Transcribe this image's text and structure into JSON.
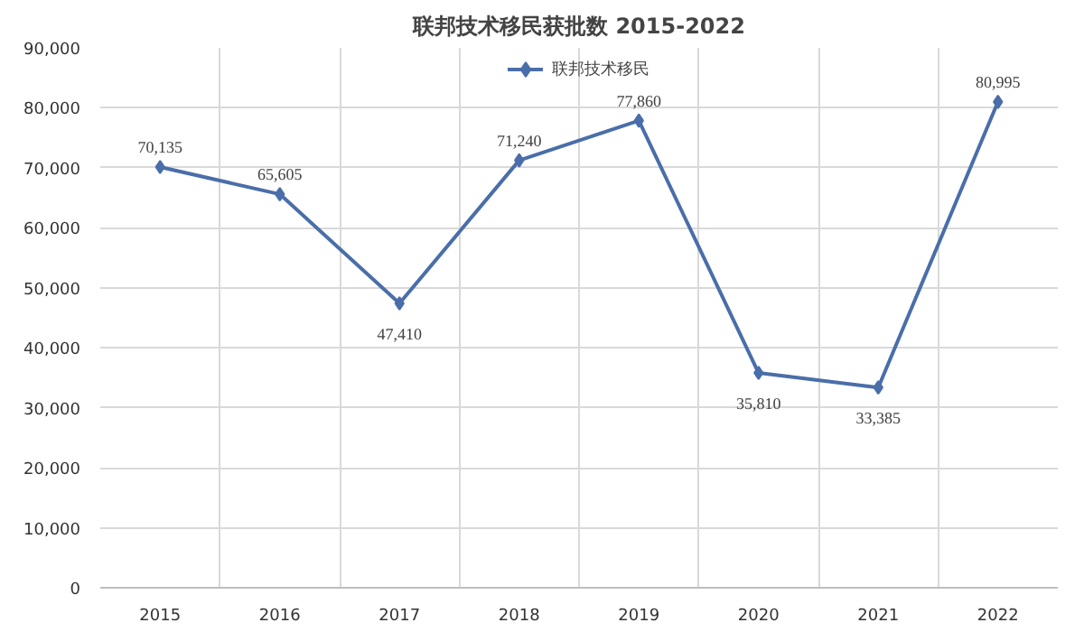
{
  "chart_data": {
    "type": "line",
    "title": "联邦技术移民获批数 2015-2022",
    "categories": [
      "2015",
      "2016",
      "2017",
      "2018",
      "2019",
      "2020",
      "2021",
      "2022"
    ],
    "series": [
      {
        "name": "联邦技术移民",
        "color": "#4a6ea9",
        "values": [
          70135,
          65605,
          47410,
          71240,
          77860,
          35810,
          33385,
          80995
        ],
        "value_labels": [
          "70,135",
          "65,605",
          "47,410",
          "71,240",
          "77,860",
          "35,810",
          "33,385",
          "80,995"
        ]
      }
    ],
    "ylim": [
      0,
      90000
    ],
    "yticks": [
      {
        "value": 0,
        "label": "0"
      },
      {
        "value": 10000,
        "label": "10,000"
      },
      {
        "value": 20000,
        "label": "20,000"
      },
      {
        "value": 30000,
        "label": "30,000"
      },
      {
        "value": 40000,
        "label": "40,000"
      },
      {
        "value": 50000,
        "label": "50,000"
      },
      {
        "value": 60000,
        "label": "60,000"
      },
      {
        "value": 70000,
        "label": "70,000"
      },
      {
        "value": 80000,
        "label": "80,000"
      },
      {
        "value": 90000,
        "label": "90,000"
      }
    ],
    "grid": true,
    "legend": "top",
    "marker": "diamond",
    "line_style": "solid"
  }
}
